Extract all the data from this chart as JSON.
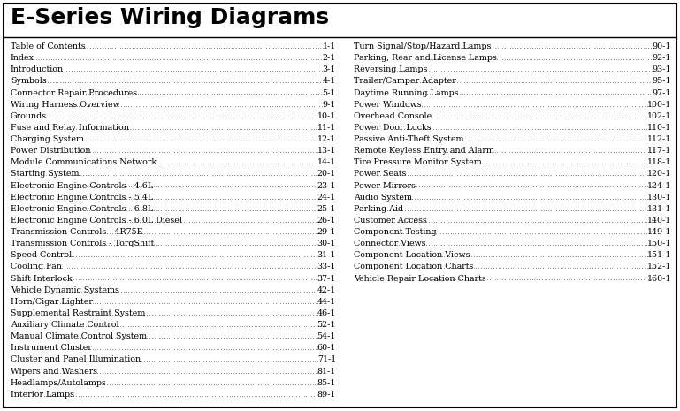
{
  "title": "E-Series Wiring Diagrams",
  "title_fontsize": 18,
  "bg_color": "#ffffff",
  "border_color": "#000000",
  "text_color": "#000000",
  "entry_fontsize": 6.8,
  "left_entries": [
    [
      "Table of Contents",
      "1-1"
    ],
    [
      "Index",
      "2-1"
    ],
    [
      "Introduction",
      "3-1"
    ],
    [
      "Symbols",
      "4-1"
    ],
    [
      "Connector Repair Procedures",
      "5-1"
    ],
    [
      "Wiring Harness Overview",
      "9-1"
    ],
    [
      "Grounds",
      "10-1"
    ],
    [
      "Fuse and Relay Information",
      "11-1"
    ],
    [
      "Charging System",
      "12-1"
    ],
    [
      "Power Distribution",
      "13-1"
    ],
    [
      "Module Communications Network",
      "14-1"
    ],
    [
      "Starting System",
      "20-1"
    ],
    [
      "Electronic Engine Controls - 4.6L",
      "23-1"
    ],
    [
      "Electronic Engine Controls - 5.4L",
      "24-1"
    ],
    [
      "Electronic Engine Controls - 6.8L",
      "25-1"
    ],
    [
      "Electronic Engine Controls - 6.0L Diesel",
      "26-1"
    ],
    [
      "Transmission Controls - 4R75E",
      "29-1"
    ],
    [
      "Transmission Controls - TorqShift",
      "30-1"
    ],
    [
      "Speed Control",
      "31-1"
    ],
    [
      "Cooling Fan",
      "33-1"
    ],
    [
      "Shift Interlock",
      "37-1"
    ],
    [
      "Vehicle Dynamic Systems",
      "42-1"
    ],
    [
      "Horn/Cigar Lighter",
      "44-1"
    ],
    [
      "Supplemental Restraint System",
      "46-1"
    ],
    [
      "Auxiliary Climate Control",
      "52-1"
    ],
    [
      "Manual Climate Control System",
      "54-1"
    ],
    [
      "Instrument Cluster",
      "60-1"
    ],
    [
      "Cluster and Panel Illumination",
      "71-1"
    ],
    [
      "Wipers and Washers",
      "81-1"
    ],
    [
      "Headlamps/Autolamps",
      "85-1"
    ],
    [
      "Interior Lamps",
      "89-1"
    ]
  ],
  "right_entries": [
    [
      "Turn Signal/Stop/Hazard Lamps",
      "90-1"
    ],
    [
      "Parking, Rear and License Lamps",
      "92-1"
    ],
    [
      "Reversing Lamps",
      "93-1"
    ],
    [
      "Trailer/Camper Adapter",
      "95-1"
    ],
    [
      "Daytime Running Lamps",
      "97-1"
    ],
    [
      "Power Windows",
      "100-1"
    ],
    [
      "Overhead Console",
      "102-1"
    ],
    [
      "Power Door Locks",
      "110-1"
    ],
    [
      "Passive Anti-Theft System",
      "112-1"
    ],
    [
      "Remote Keyless Entry and Alarm",
      "117-1"
    ],
    [
      "Tire Pressure Monitor System",
      "118-1"
    ],
    [
      "Power Seats",
      "120-1"
    ],
    [
      "Power Mirrors",
      "124-1"
    ],
    [
      "Audio System",
      "130-1"
    ],
    [
      "Parking Aid",
      "131-1"
    ],
    [
      "Customer Access",
      "140-1"
    ],
    [
      "Component Testing",
      "149-1"
    ],
    [
      "Connector Views",
      "150-1"
    ],
    [
      "Component Location Views",
      "151-1"
    ],
    [
      "Component Location Charts",
      "152-1"
    ],
    [
      "Vehicle Repair Location Charts",
      "160-1"
    ]
  ]
}
